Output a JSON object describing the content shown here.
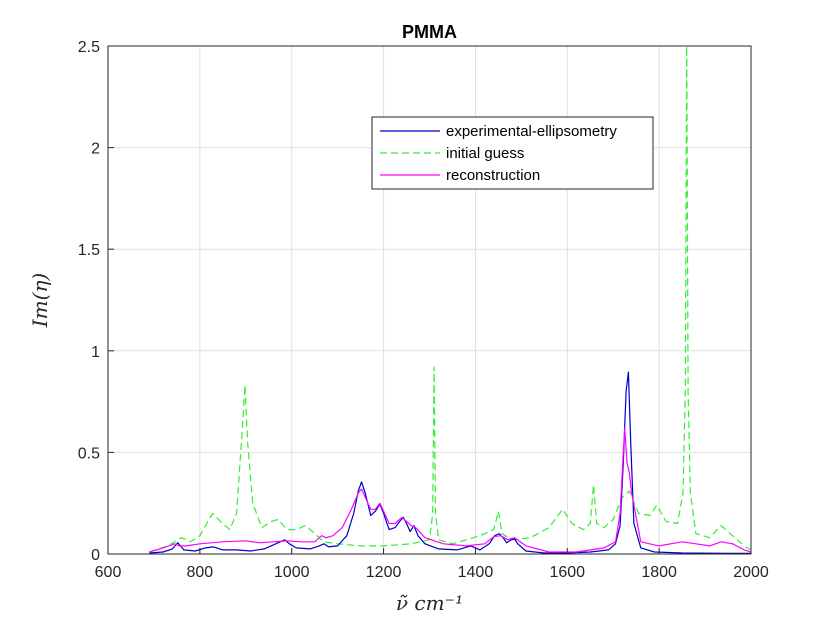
{
  "chart_data": {
    "type": "line",
    "title": "PMMA",
    "xlabel": "ν̃ cm⁻¹",
    "ylabel": "Im(η)",
    "xlim": [
      600,
      2000
    ],
    "ylim": [
      0,
      2.5
    ],
    "x_ticks": [
      600,
      800,
      1000,
      1200,
      1400,
      1600,
      1800,
      2000
    ],
    "x_tick_labels": [
      "600",
      "800",
      "1000",
      "1200",
      "1400",
      "1600",
      "1800",
      "2000"
    ],
    "y_ticks": [
      0,
      0.5,
      1,
      1.5,
      2,
      2.5
    ],
    "y_tick_labels": [
      "0",
      "0.5",
      "1",
      "1.5",
      "2",
      "2.5"
    ],
    "grid": true,
    "legend_position": "top-right",
    "series": [
      {
        "name": "experimental-ellipsometry",
        "color": "#0000cc",
        "dash": "solid",
        "x": [
          690,
          720,
          740,
          752,
          765,
          790,
          812,
          830,
          850,
          880,
          910,
          940,
          960,
          975,
          985,
          995,
          1010,
          1040,
          1060,
          1070,
          1080,
          1100,
          1120,
          1135,
          1145,
          1152,
          1160,
          1172,
          1182,
          1192,
          1200,
          1212,
          1225,
          1235,
          1243,
          1250,
          1258,
          1266,
          1275,
          1290,
          1320,
          1360,
          1390,
          1410,
          1430,
          1442,
          1452,
          1460,
          1468,
          1478,
          1485,
          1492,
          1510,
          1550,
          1600,
          1650,
          1690,
          1705,
          1715,
          1722,
          1728,
          1733,
          1738,
          1745,
          1760,
          1790,
          1850,
          1950,
          2000
        ],
        "y": [
          0.005,
          0.01,
          0.025,
          0.055,
          0.02,
          0.015,
          0.03,
          0.035,
          0.02,
          0.02,
          0.015,
          0.025,
          0.045,
          0.06,
          0.07,
          0.05,
          0.03,
          0.025,
          0.04,
          0.05,
          0.035,
          0.04,
          0.09,
          0.2,
          0.31,
          0.355,
          0.3,
          0.19,
          0.21,
          0.245,
          0.2,
          0.12,
          0.13,
          0.16,
          0.18,
          0.15,
          0.11,
          0.14,
          0.09,
          0.05,
          0.025,
          0.02,
          0.04,
          0.02,
          0.05,
          0.09,
          0.1,
          0.08,
          0.055,
          0.07,
          0.075,
          0.05,
          0.015,
          0.005,
          0.005,
          0.01,
          0.02,
          0.05,
          0.14,
          0.45,
          0.8,
          0.895,
          0.55,
          0.15,
          0.03,
          0.01,
          0.005,
          0.003,
          0.003
        ]
      },
      {
        "name": "initial guess",
        "color": "#33ee33",
        "dash": "dashed",
        "x": [
          690,
          730,
          760,
          780,
          800,
          815,
          828,
          845,
          865,
          880,
          892,
          898,
          904,
          915,
          935,
          955,
          970,
          990,
          1010,
          1030,
          1050,
          1070,
          1100,
          1150,
          1200,
          1260,
          1300,
          1307,
          1310,
          1313,
          1320,
          1350,
          1380,
          1410,
          1440,
          1450,
          1458,
          1480,
          1520,
          1560,
          1590,
          1610,
          1635,
          1650,
          1657,
          1664,
          1680,
          1700,
          1720,
          1735,
          1755,
          1780,
          1795,
          1815,
          1840,
          1852,
          1857,
          1860,
          1863,
          1868,
          1880,
          1910,
          1935,
          1960,
          1985,
          2000
        ],
        "y": [
          0.01,
          0.04,
          0.08,
          0.06,
          0.09,
          0.15,
          0.2,
          0.16,
          0.12,
          0.2,
          0.6,
          0.83,
          0.55,
          0.25,
          0.13,
          0.16,
          0.17,
          0.12,
          0.12,
          0.14,
          0.1,
          0.06,
          0.05,
          0.04,
          0.04,
          0.05,
          0.07,
          0.2,
          0.92,
          0.2,
          0.07,
          0.05,
          0.07,
          0.09,
          0.12,
          0.21,
          0.1,
          0.07,
          0.08,
          0.13,
          0.22,
          0.15,
          0.12,
          0.15,
          0.34,
          0.15,
          0.13,
          0.17,
          0.28,
          0.31,
          0.2,
          0.19,
          0.24,
          0.16,
          0.15,
          0.3,
          0.8,
          2.5,
          0.8,
          0.3,
          0.1,
          0.08,
          0.14,
          0.09,
          0.04,
          0.02
        ]
      },
      {
        "name": "reconstruction",
        "color": "#ff00ff",
        "dash": "solid",
        "x": [
          690,
          720,
          745,
          755,
          770,
          800,
          850,
          900,
          930,
          960,
          990,
          1020,
          1050,
          1065,
          1075,
          1090,
          1110,
          1130,
          1145,
          1152,
          1160,
          1172,
          1182,
          1192,
          1200,
          1212,
          1225,
          1240,
          1250,
          1260,
          1270,
          1290,
          1330,
          1380,
          1420,
          1440,
          1455,
          1470,
          1485,
          1510,
          1560,
          1620,
          1680,
          1705,
          1715,
          1722,
          1725,
          1730,
          1735,
          1740,
          1760,
          1800,
          1850,
          1880,
          1910,
          1935,
          1960,
          1985,
          2000
        ],
        "y": [
          0.01,
          0.03,
          0.05,
          0.04,
          0.04,
          0.05,
          0.06,
          0.065,
          0.055,
          0.06,
          0.065,
          0.06,
          0.06,
          0.09,
          0.08,
          0.09,
          0.13,
          0.22,
          0.3,
          0.32,
          0.28,
          0.22,
          0.22,
          0.25,
          0.21,
          0.15,
          0.15,
          0.18,
          0.16,
          0.14,
          0.13,
          0.08,
          0.05,
          0.04,
          0.05,
          0.085,
          0.09,
          0.07,
          0.08,
          0.04,
          0.01,
          0.01,
          0.03,
          0.06,
          0.2,
          0.5,
          0.62,
          0.45,
          0.4,
          0.3,
          0.06,
          0.04,
          0.06,
          0.05,
          0.04,
          0.06,
          0.05,
          0.02,
          0.01
        ]
      }
    ]
  }
}
